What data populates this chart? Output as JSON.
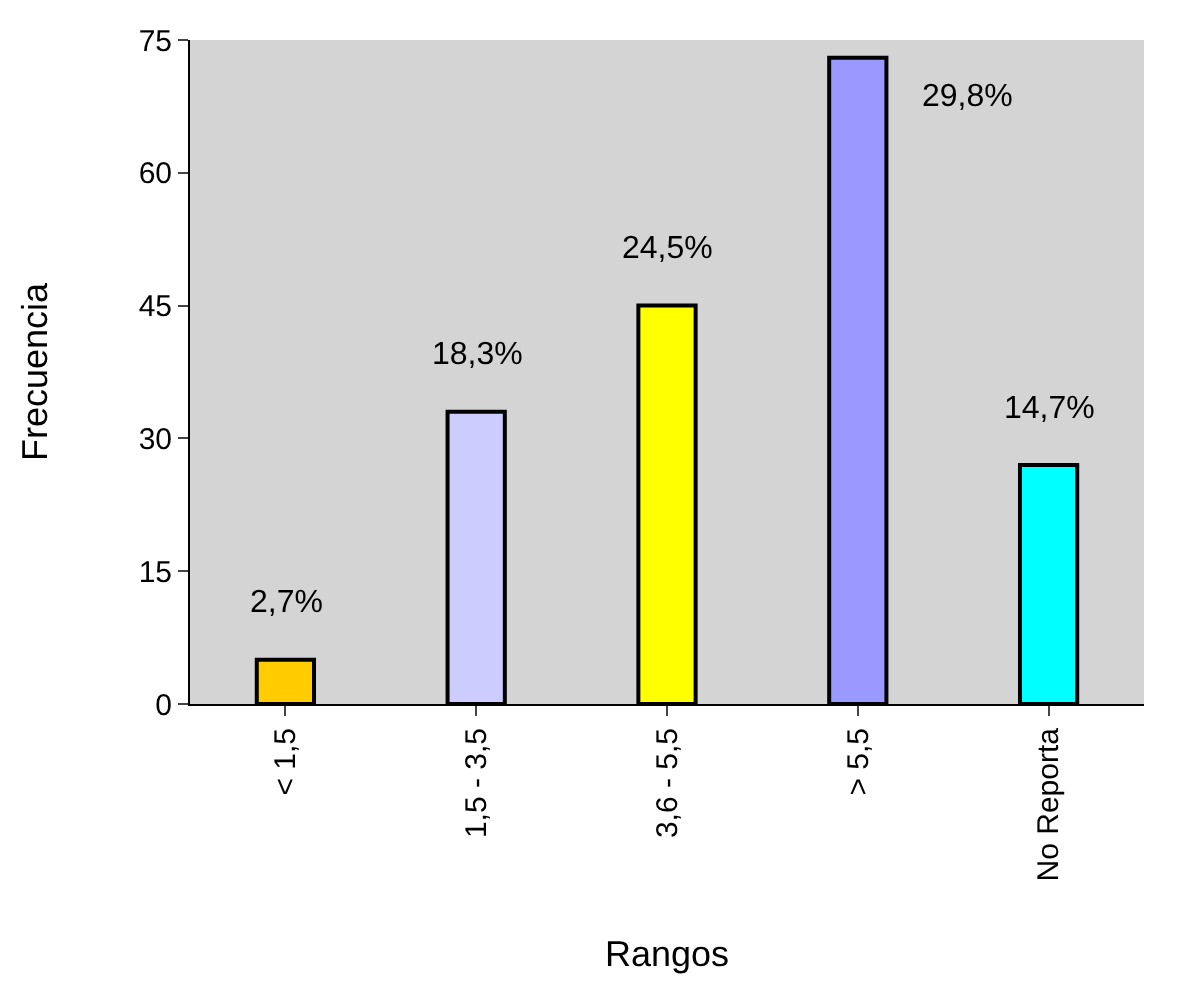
{
  "chart_data": {
    "type": "bar",
    "xlabel": "Rangos",
    "ylabel": "Frecuencia",
    "categories": [
      "< 1,5",
      "1,5 - 3,5",
      "3,6 - 5,5",
      "> 5,5",
      "No Reporta"
    ],
    "values": [
      5,
      33,
      45,
      73,
      27
    ],
    "colors": [
      "#ffcc00",
      "#ccccff",
      "#ffff00",
      "#9999ff",
      "#00ffff"
    ],
    "annotations": [
      "2,7%",
      "18,3%",
      "24,5%",
      "29,8%",
      "14,7%"
    ],
    "ylim": [
      0,
      75
    ],
    "yticks": [
      0,
      15,
      30,
      45,
      60,
      75
    ],
    "grid": false,
    "legend": false
  }
}
